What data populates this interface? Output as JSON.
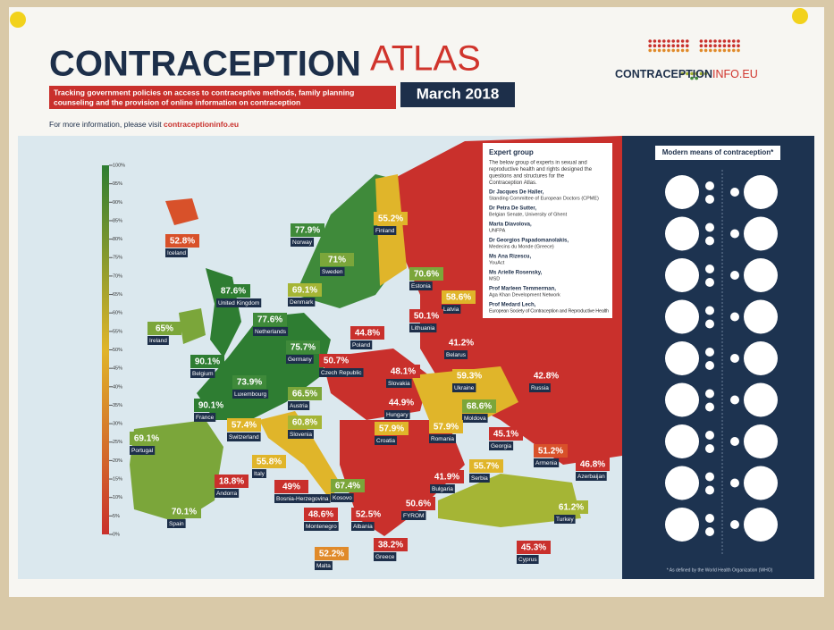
{
  "header": {
    "title_main": "CONTRACEPTION",
    "title_accent": "ATLAS",
    "subtitle_lines": [
      "Tracking government policies on access to contraceptive methods, family planning",
      "counseling and the provision of online information on contraception"
    ],
    "date": "March 2018",
    "info_text": "For more information, please visit",
    "info_link": "contraceptioninfo.eu"
  },
  "logo": {
    "main": "CONTRACEPTION",
    "accent": "INFO.EU"
  },
  "scale": {
    "labels": [
      "100%",
      "95%",
      "90%",
      "85%",
      "80%",
      "75%",
      "70%",
      "65%",
      "60%",
      "55%",
      "50%",
      "45%",
      "40%",
      "35%",
      "30%",
      "25%",
      "20%",
      "15%",
      "10%",
      "5%",
      "0%"
    ]
  },
  "expert_group": {
    "title": "Expert group",
    "intro": [
      "The below group of experts in sexual and",
      "reproductive health and rights designed the",
      "questions and structures for the",
      "Contraception Atlas."
    ],
    "members": [
      {
        "name": "Dr Jacques De Haller,",
        "role": "Standing Committee of European Doctors (CPME)"
      },
      {
        "name": "Dr Petra De Sutter,",
        "role": "Belgian Senate, University of Ghent"
      },
      {
        "name": "Marta Diavolova,",
        "role": "UNFPA"
      },
      {
        "name": "Dr Georgios Papadomanolakis,",
        "role": "Medecins du Monde (Greece)"
      },
      {
        "name": "Ms Ana Rizescu,",
        "role": "YouAct"
      },
      {
        "name": "Ms Arielle Rosensky,",
        "role": "MSD"
      },
      {
        "name": "Prof Marleen Temmerman,",
        "role": "Aga Khan Development Network"
      },
      {
        "name": "Prof Medard Lech,",
        "role": "European Society of Contraception and Reproductive Health"
      }
    ]
  },
  "countries": [
    {
      "name": "Iceland",
      "value": "52.8%",
      "color": "#d8512a"
    },
    {
      "name": "Norway",
      "value": "77.9%",
      "color": "#3f8a3a"
    },
    {
      "name": "Finland",
      "value": "55.2%",
      "color": "#e0b52a"
    },
    {
      "name": "Sweden",
      "value": "71%",
      "color": "#7ba63a"
    },
    {
      "name": "United Kingdom",
      "value": "87.6%",
      "color": "#2e7d32"
    },
    {
      "name": "Denmark",
      "value": "69.1%",
      "color": "#a5b535"
    },
    {
      "name": "Estonia",
      "value": "70.6%",
      "color": "#7ba63a"
    },
    {
      "name": "Latvia",
      "value": "58.6%",
      "color": "#e0b52a"
    },
    {
      "name": "Netherlands",
      "value": "77.6%",
      "color": "#3f8a3a"
    },
    {
      "name": "Ireland",
      "value": "65%",
      "color": "#7ba63a"
    },
    {
      "name": "Lithuania",
      "value": "50.1%",
      "color": "#c9302c"
    },
    {
      "name": "Poland",
      "value": "44.8%",
      "color": "#c9302c"
    },
    {
      "name": "Belarus",
      "value": "41.2%",
      "color": "#c9302c"
    },
    {
      "name": "Germany",
      "value": "75.7%",
      "color": "#3f8a3a"
    },
    {
      "name": "Belgium",
      "value": "90.1%",
      "color": "#2e7d32"
    },
    {
      "name": "Luxembourg",
      "value": "73.9%",
      "color": "#3f8a3a"
    },
    {
      "name": "Czech Republic",
      "value": "50.7%",
      "color": "#c9302c"
    },
    {
      "name": "Slovakia",
      "value": "48.1%",
      "color": "#c9302c"
    },
    {
      "name": "Ukraine",
      "value": "59.3%",
      "color": "#e0b52a"
    },
    {
      "name": "Russia",
      "value": "42.8%",
      "color": "#c9302c"
    },
    {
      "name": "France",
      "value": "90.1%",
      "color": "#2e7d32"
    },
    {
      "name": "Austria",
      "value": "66.5%",
      "color": "#7ba63a"
    },
    {
      "name": "Hungary",
      "value": "44.9%",
      "color": "#c9302c"
    },
    {
      "name": "Moldova",
      "value": "68.6%",
      "color": "#7ba63a"
    },
    {
      "name": "Switzerland",
      "value": "57.4%",
      "color": "#e0b52a"
    },
    {
      "name": "Slovenia",
      "value": "60.8%",
      "color": "#a5b535"
    },
    {
      "name": "Croatia",
      "value": "57.9%",
      "color": "#e0b52a"
    },
    {
      "name": "Romania",
      "value": "57.9%",
      "color": "#e0b52a"
    },
    {
      "name": "Portugal",
      "value": "69.1%",
      "color": "#7ba63a"
    },
    {
      "name": "Italy",
      "value": "55.8%",
      "color": "#e0b52a"
    },
    {
      "name": "Georgia",
      "value": "45.1%",
      "color": "#c9302c"
    },
    {
      "name": "Armenia",
      "value": "51.2%",
      "color": "#d8512a"
    },
    {
      "name": "Azerbaijan",
      "value": "46.8%",
      "color": "#c9302c"
    },
    {
      "name": "Andorra",
      "value": "18.8%",
      "color": "#c9302c"
    },
    {
      "name": "Bosnia-Herzegovina",
      "value": "49%",
      "color": "#c9302c"
    },
    {
      "name": "Kosovo",
      "value": "67.4%",
      "color": "#7ba63a"
    },
    {
      "name": "Serbia",
      "value": "55.7%",
      "color": "#e0b52a"
    },
    {
      "name": "Bulgaria",
      "value": "41.9%",
      "color": "#c9302c"
    },
    {
      "name": "Montenegro",
      "value": "48.6%",
      "color": "#c9302c"
    },
    {
      "name": "Albania",
      "value": "52.5%",
      "color": "#c9302c"
    },
    {
      "name": "FYROM",
      "value": "50.6%",
      "color": "#c9302c"
    },
    {
      "name": "Turkey",
      "value": "61.2%",
      "color": "#a5b535"
    },
    {
      "name": "Spain",
      "value": "70.1%",
      "color": "#7ba63a"
    },
    {
      "name": "Malta",
      "value": "52.2%",
      "color": "#e08a2a"
    },
    {
      "name": "Greece",
      "value": "38.2%",
      "color": "#c9302c"
    },
    {
      "name": "Cyprus",
      "value": "45.3%",
      "color": "#c9302c"
    }
  ],
  "panel": {
    "title": "Modern means of contraception*",
    "footnote": "* As defined by the World Health Organization (WHO)"
  }
}
